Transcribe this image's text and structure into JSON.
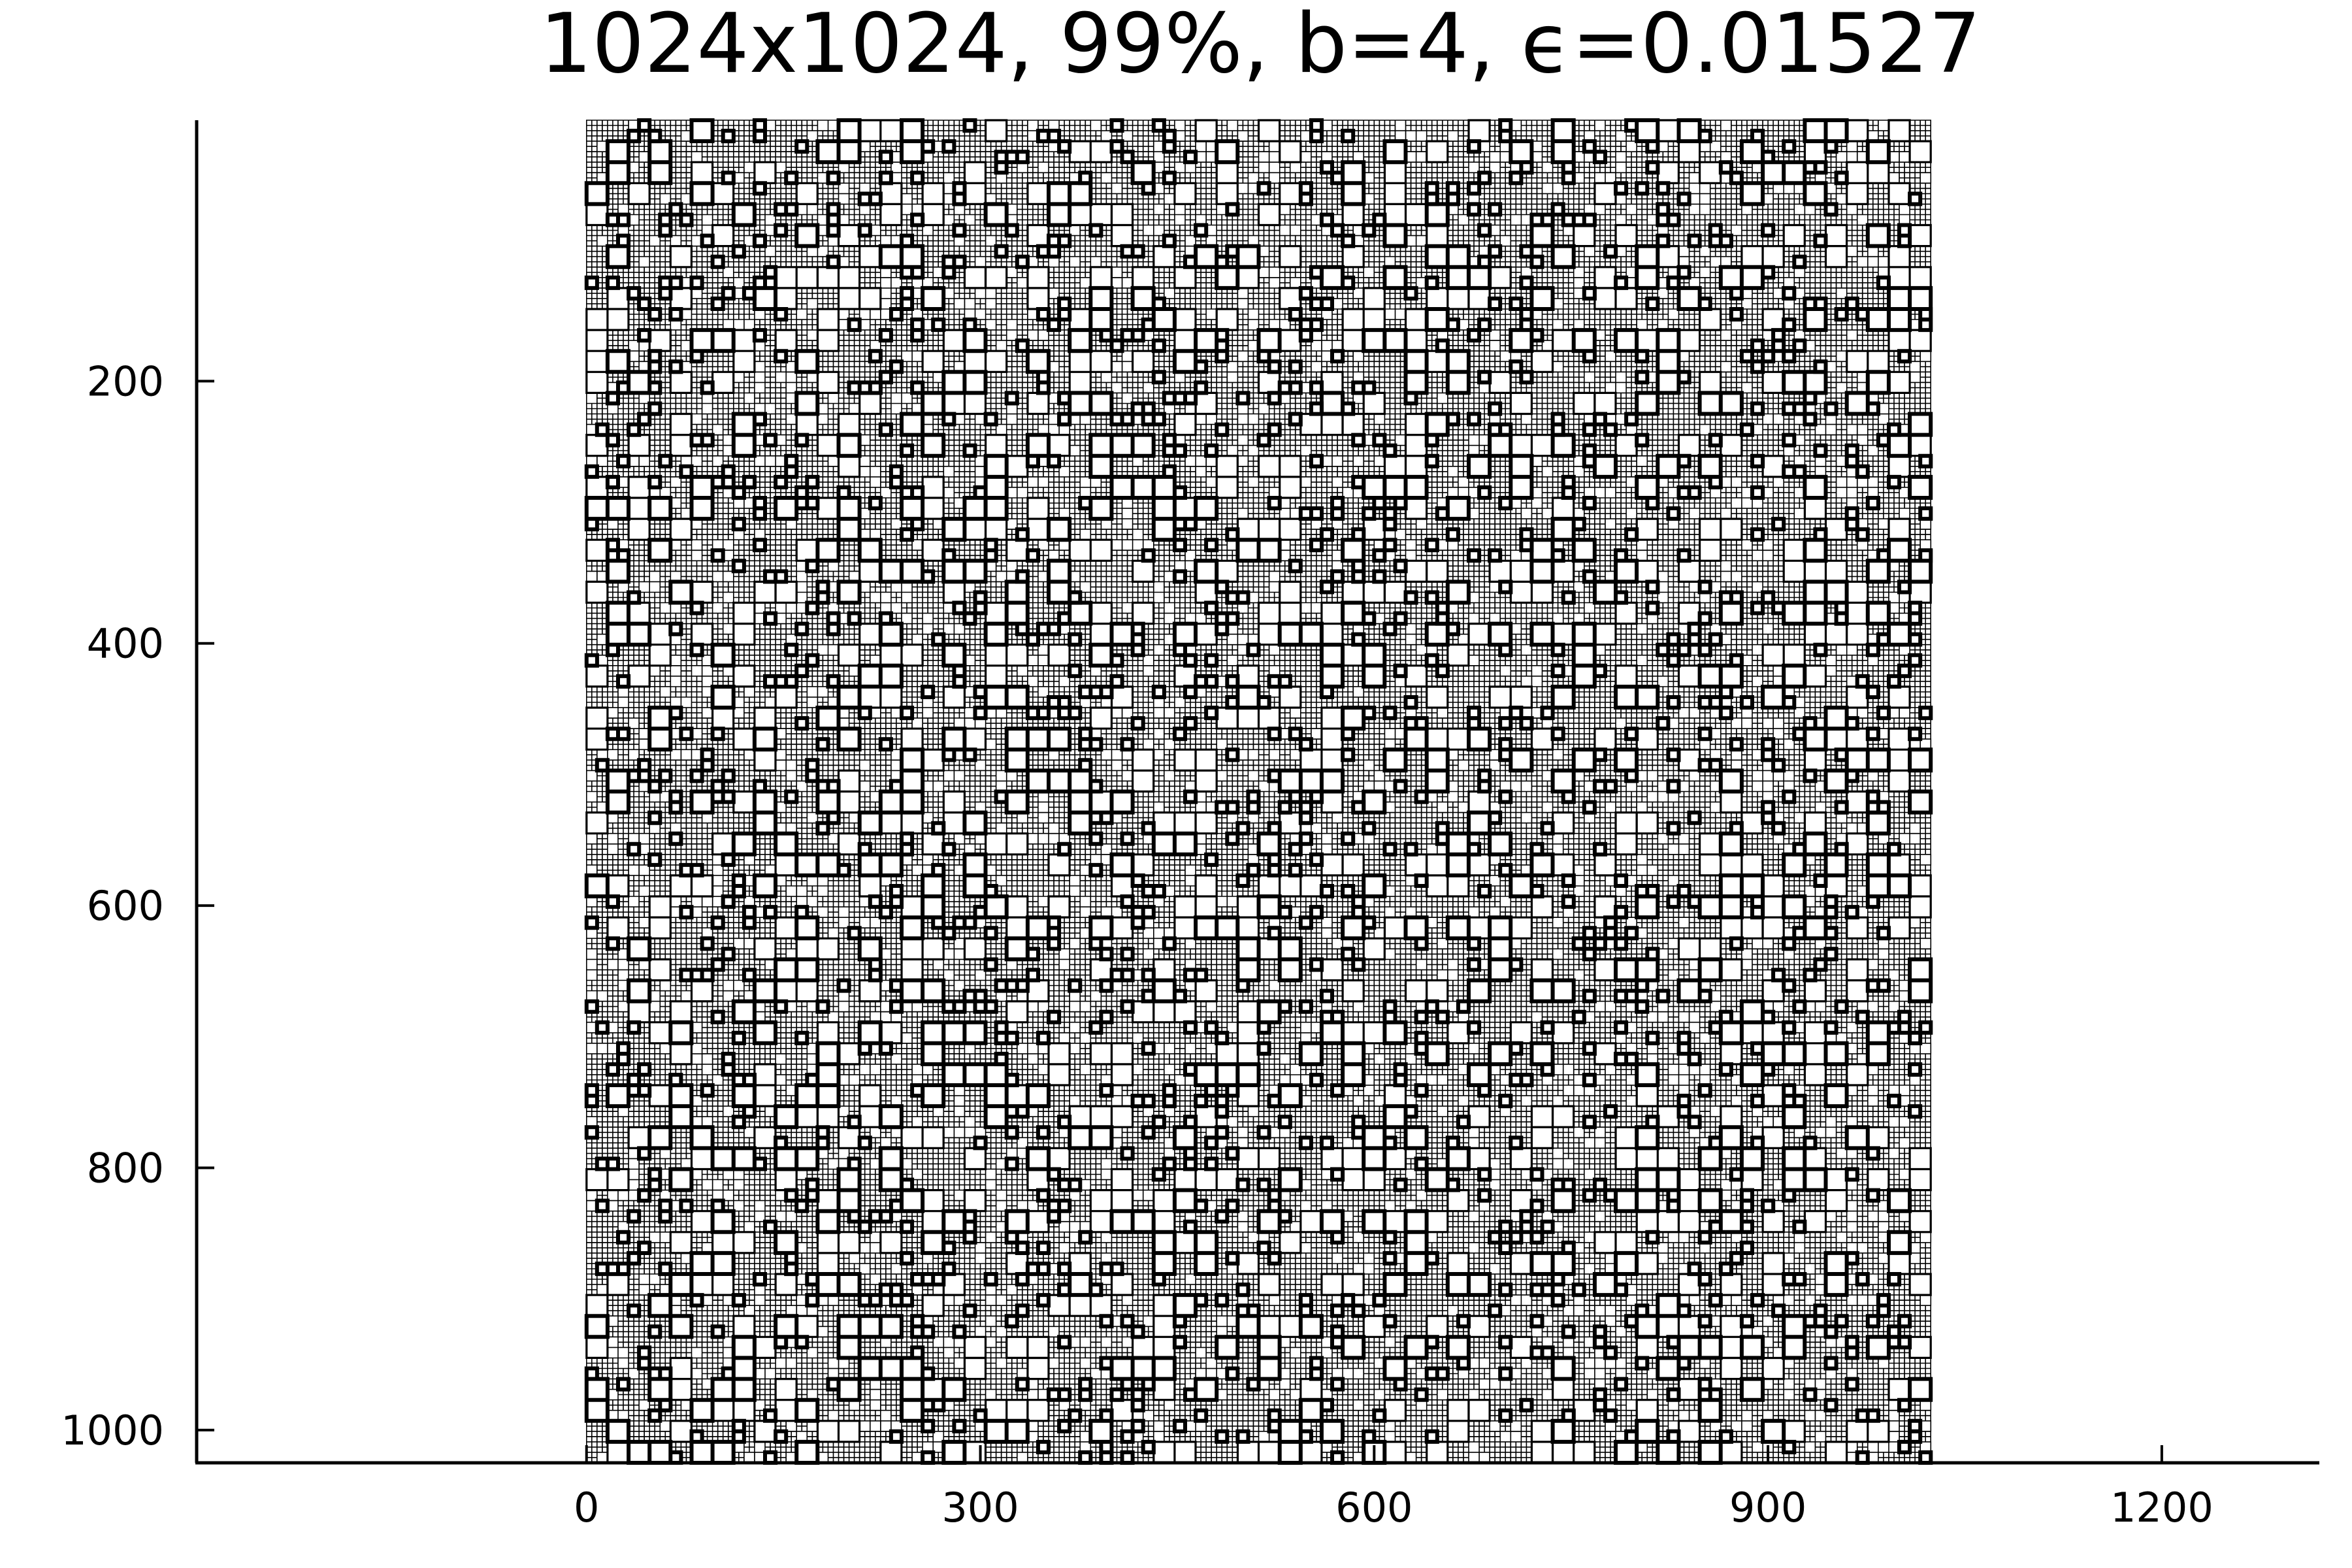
{
  "chart_data": {
    "type": "heatmap",
    "title": "1024x1024, 99%, b=4, ϵ=0.01527",
    "xlabel": "",
    "ylabel": "",
    "x_ticks": [
      0,
      300,
      600,
      900,
      1200
    ],
    "y_ticks": [
      200,
      400,
      600,
      800,
      1000
    ],
    "xlim": [
      -297,
      1320
    ],
    "ylim": [
      1025,
      1
    ],
    "y_reversed": true,
    "grid": false,
    "legend": "none",
    "matrix_size": [
      1024,
      1024
    ],
    "block_size_b": 4,
    "fill_percent": "99%",
    "epsilon": 0.01527,
    "colors": {
      "line": "#000000",
      "background": "#ffffff"
    }
  }
}
